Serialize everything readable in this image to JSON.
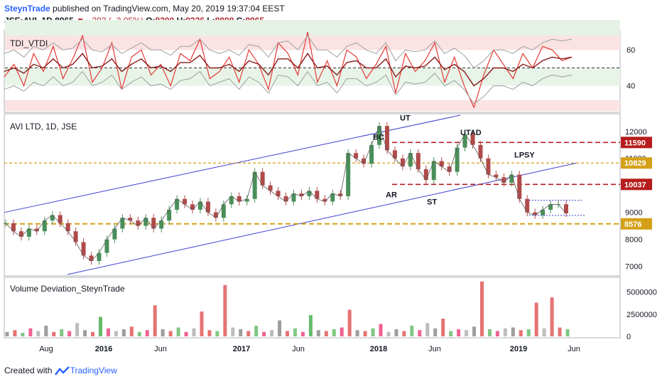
{
  "header": {
    "publisher": "SteynTrade",
    "published_text": "published on TradingView.com, May 20, 2019 19:37:04 EEST",
    "symbol_line": "JSE:AVI, 1D",
    "last_price": "8965",
    "change": "−282 (−3.05%)",
    "o_label": "O:",
    "o_value": "9300",
    "h_label": "H:",
    "h_value": "9326",
    "l_label": "L:",
    "l_value": "8898",
    "c_label": "C:",
    "c_value": "8965"
  },
  "footer": {
    "created_with": "Created with",
    "tradingview": "TradingView"
  },
  "colors": {
    "blue_line": "#3f3fd0",
    "red_dash": "#b71c1c",
    "gold_dash": "#d4a017",
    "tdi_red": "#e53935",
    "tdi_dark": "#8b1a1a",
    "band_grey": "#9e9e9e"
  },
  "chart_data": [
    {
      "type": "line",
      "title": "TDI_VTDI",
      "ylim": [
        26,
        70
      ],
      "yticks": [
        40,
        60
      ],
      "reference_level": 50,
      "zones": {
        "upper": [
          60,
          68
        ],
        "lower": [
          40,
          50
        ],
        "extreme_low": [
          26,
          32
        ]
      },
      "series": [
        {
          "name": "RSI (fast)",
          "values": [
            45,
            52,
            40,
            58,
            48,
            62,
            44,
            55,
            68,
            42,
            50,
            64,
            38,
            56,
            60,
            46,
            52,
            40,
            58,
            54,
            66,
            44,
            48,
            56,
            42,
            60,
            52,
            38,
            64,
            58,
            46,
            70,
            42,
            54,
            40,
            60,
            56,
            44,
            52,
            62,
            36,
            58,
            48,
            54,
            64,
            42,
            56,
            40,
            28,
            46,
            60,
            52,
            44,
            58,
            50,
            62,
            60,
            54,
            56
          ]
        },
        {
          "name": "Signal",
          "values": [
            48,
            50,
            47,
            52,
            50,
            55,
            50,
            52,
            58,
            50,
            51,
            55,
            48,
            52,
            55,
            50,
            51,
            48,
            53,
            53,
            57,
            50,
            50,
            52,
            48,
            54,
            52,
            46,
            55,
            55,
            50,
            58,
            50,
            51,
            46,
            53,
            54,
            50,
            50,
            55,
            45,
            51,
            50,
            51,
            56,
            49,
            52,
            48,
            40,
            44,
            50,
            50,
            48,
            52,
            50,
            54,
            56,
            55,
            56
          ]
        },
        {
          "name": "Upper band",
          "values": [
            58,
            60,
            56,
            62,
            60,
            64,
            60,
            61,
            66,
            60,
            59,
            63,
            58,
            61,
            64,
            60,
            60,
            57,
            62,
            62,
            66,
            60,
            58,
            60,
            57,
            63,
            62,
            56,
            64,
            65,
            60,
            68,
            60,
            60,
            56,
            62,
            64,
            60,
            58,
            64,
            54,
            60,
            59,
            60,
            65,
            58,
            61,
            57,
            50,
            54,
            60,
            60,
            58,
            62,
            60,
            64,
            66,
            65,
            66
          ]
        },
        {
          "name": "Lower band",
          "values": [
            38,
            40,
            37,
            42,
            40,
            45,
            40,
            42,
            48,
            40,
            42,
            46,
            38,
            42,
            45,
            40,
            41,
            38,
            43,
            44,
            48,
            40,
            42,
            44,
            38,
            45,
            42,
            36,
            46,
            45,
            40,
            48,
            40,
            42,
            36,
            44,
            44,
            40,
            42,
            46,
            35,
            42,
            41,
            42,
            47,
            40,
            43,
            38,
            30,
            34,
            40,
            40,
            38,
            42,
            40,
            44,
            46,
            45,
            46
          ]
        }
      ]
    },
    {
      "type": "line",
      "title": "AVI LTD, 1D, JSE",
      "ylim": [
        6700,
        12600
      ],
      "yticks": [
        7000,
        8000,
        9000,
        10000,
        11000,
        12000
      ],
      "x_labels": [
        "Aug",
        "2016",
        "Jun",
        "2017",
        "Jun",
        "2018",
        "Jun",
        "2019",
        "Jun"
      ],
      "series": [
        {
          "name": "Close",
          "values": [
            8600,
            8300,
            8100,
            8400,
            8300,
            8700,
            8900,
            8600,
            8300,
            7900,
            7400,
            7200,
            7500,
            8000,
            8400,
            8800,
            8700,
            8500,
            8800,
            8400,
            8700,
            9100,
            9500,
            9300,
            9100,
            9400,
            9000,
            8800,
            9300,
            9600,
            9400,
            9500,
            10500,
            10000,
            9800,
            9600,
            9400,
            9700,
            9600,
            9800,
            9500,
            9400,
            9700,
            9600,
            11200,
            11000,
            10800,
            11500,
            12200,
            11300,
            11000,
            10700,
            11200,
            10600,
            10200,
            10900,
            10700,
            10500,
            11400,
            11900,
            11500,
            11000,
            10400,
            10300,
            10100,
            10400,
            9500,
            9000,
            8900,
            9100,
            9300,
            9300,
            8965
          ]
        }
      ],
      "price_labels": [
        {
          "value": 11590,
          "label": "11590",
          "color": "red"
        },
        {
          "value": 10829,
          "label": "10829",
          "color": "gold"
        },
        {
          "value": 10037,
          "label": "10037",
          "color": "red"
        },
        {
          "value": 8576,
          "label": "8576",
          "color": "gold"
        }
      ],
      "annotations": [
        "UT",
        "BC",
        "UTAD",
        "LPSY",
        "AR",
        "ST"
      ]
    },
    {
      "type": "bar",
      "title": "Volume Deviation_SteynTrade",
      "ylim": [
        0,
        6500000
      ],
      "yticks": [
        0,
        2500000,
        5000000
      ],
      "ytick_labels": [
        "0",
        "2500000",
        "5000000"
      ],
      "values": [
        0.5,
        0.7,
        0.4,
        0.9,
        0.6,
        1.2,
        0.5,
        0.8,
        0.6,
        1.5,
        0.7,
        0.5,
        2.2,
        0.9,
        0.6,
        0.8,
        1.1,
        0.5,
        0.7,
        3.5,
        0.8,
        0.6,
        1.0,
        0.5,
        0.9,
        2.8,
        0.7,
        0.6,
        5.8,
        1.0,
        0.8,
        0.6,
        1.2,
        0.5,
        0.7,
        1.8,
        0.6,
        0.9,
        0.5,
        2.4,
        0.7,
        0.6,
        0.8,
        1.0,
        3.0,
        0.7,
        0.6,
        0.9,
        1.4,
        0.5,
        0.8,
        0.6,
        1.2,
        0.7,
        1.5,
        0.9,
        2.0,
        0.6,
        0.8,
        0.7,
        1.1,
        6.2,
        0.8,
        0.6,
        0.9,
        1.0,
        0.7,
        0.8,
        3.8,
        0.9,
        4.4,
        1.0,
        0.8
      ]
    }
  ]
}
